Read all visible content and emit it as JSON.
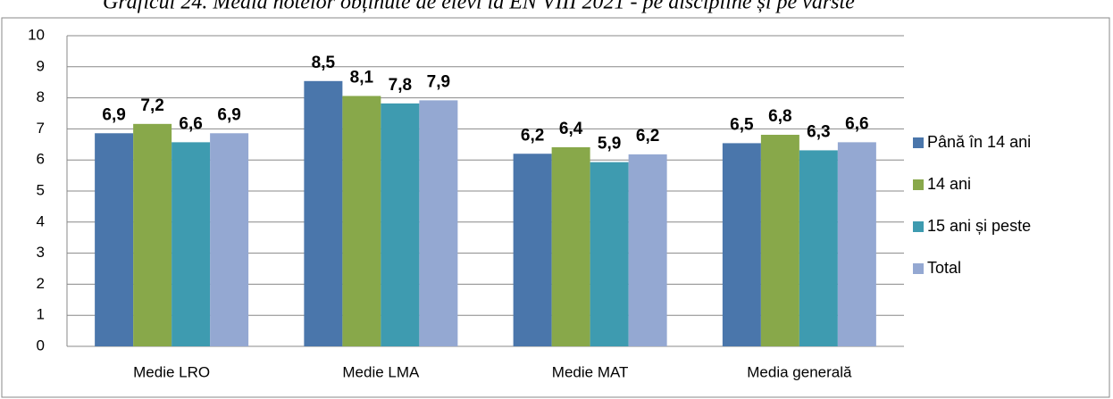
{
  "chart_data": {
    "type": "bar",
    "title": "Graficul 24. Media notelor obținute de elevi la EN VIII 2021 - pe discipline și pe vârste",
    "categories": [
      "Medie LRO",
      "Medie LMA",
      "Medie MAT",
      "Media generală"
    ],
    "series": [
      {
        "name": "Până în 14 ani",
        "color": "#4a76ab",
        "values": [
          6.86,
          8.54,
          6.2,
          6.54
        ],
        "value_labels": [
          "6,9",
          "8,5",
          "6,2",
          "6,5"
        ]
      },
      {
        "name": "14 ani",
        "color": "#88a84a",
        "values": [
          7.16,
          8.06,
          6.41,
          6.81
        ],
        "value_labels": [
          "7,2",
          "8,1",
          "6,4",
          "6,8"
        ]
      },
      {
        "name": "15 ani și peste",
        "color": "#3e9bb0",
        "values": [
          6.57,
          7.82,
          5.93,
          6.31
        ],
        "value_labels": [
          "6,6",
          "7,8",
          "5,9",
          "6,3"
        ]
      },
      {
        "name": "Total",
        "color": "#94a8d2",
        "values": [
          6.86,
          7.92,
          6.18,
          6.57
        ],
        "value_labels": [
          "6,9",
          "7,9",
          "6,2",
          "6,6"
        ]
      }
    ],
    "ylim": [
      0,
      10
    ],
    "yticks": [
      0,
      1,
      2,
      3,
      4,
      5,
      6,
      7,
      8,
      9,
      10
    ],
    "grid": true,
    "legend": "right"
  }
}
